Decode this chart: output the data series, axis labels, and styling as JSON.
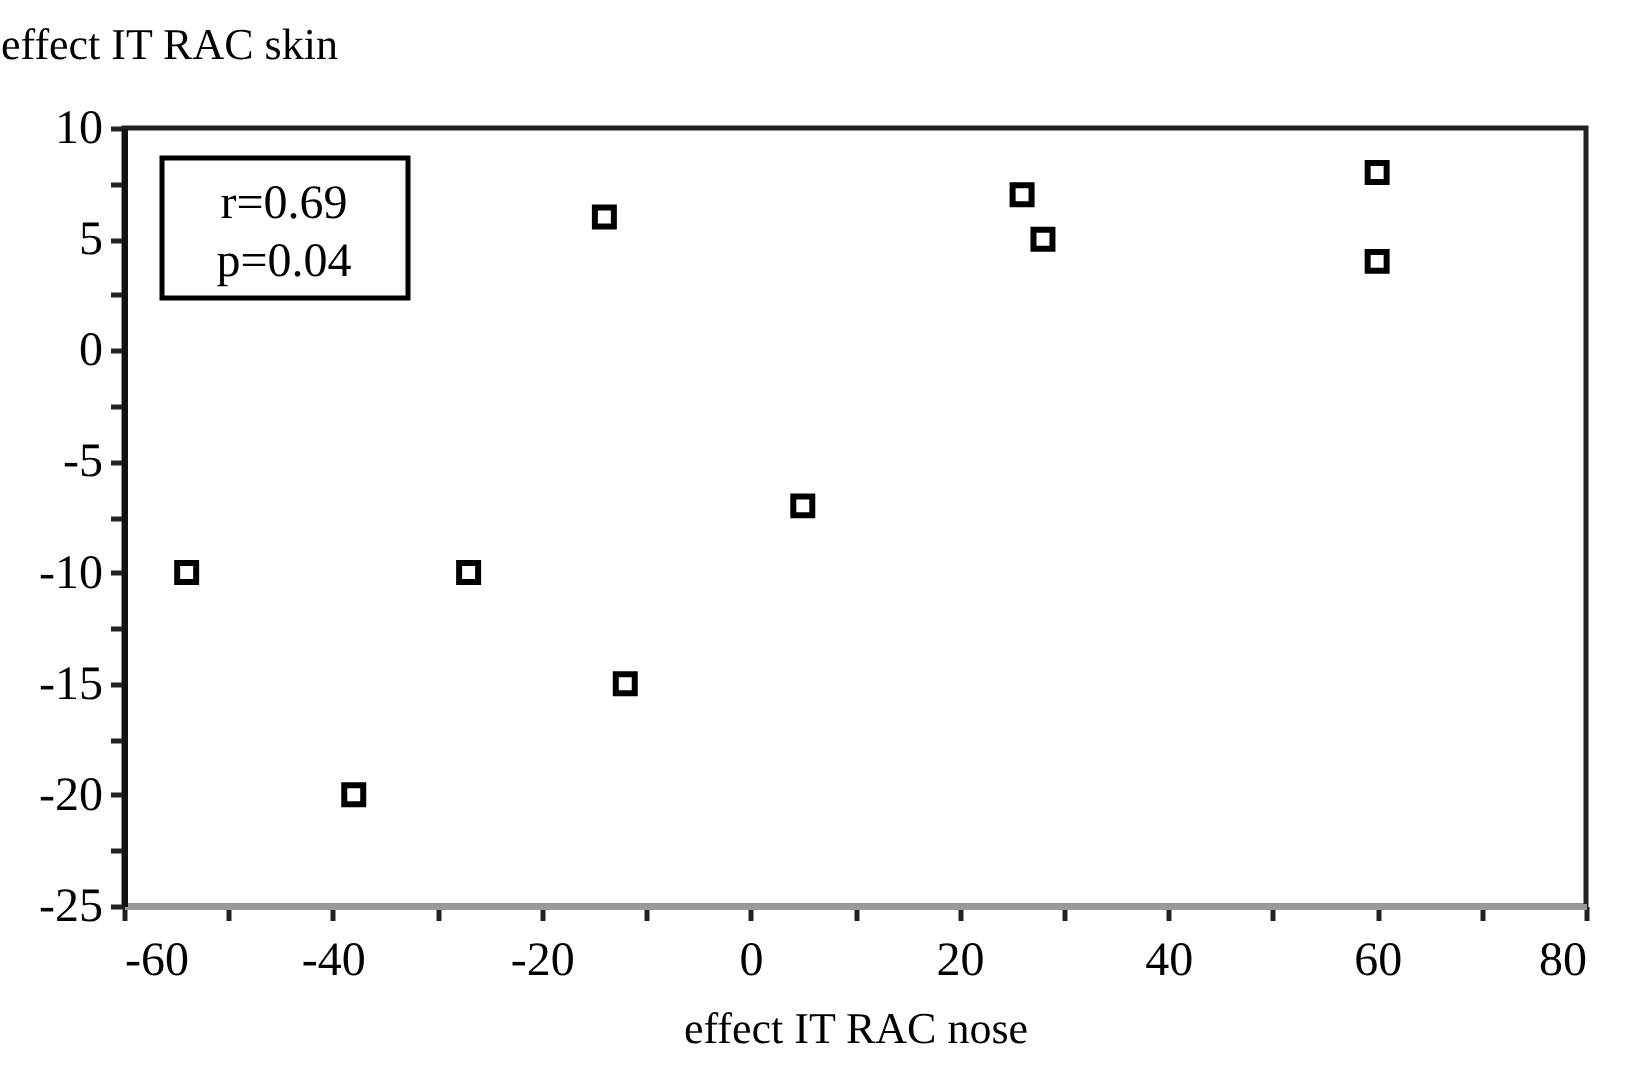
{
  "chart_data": {
    "type": "scatter",
    "xlabel": "effect IT RAC nose",
    "ylabel": "effect IT RAC skin",
    "annotations": [
      "r=0.69",
      "p=0.04"
    ],
    "x": [
      -54,
      -38,
      -27,
      -14,
      -12,
      5,
      26,
      28,
      60,
      60
    ],
    "series": [
      {
        "color": "#000000",
        "values": [
          -10,
          -20,
          -10,
          6,
          -15,
          -7,
          7,
          5,
          8,
          4
        ]
      }
    ],
    "xlim": [
      -60,
      80
    ],
    "ylim": [
      -25,
      10
    ],
    "xticks": [
      -60,
      {
        "value": -50,
        "label": null
      },
      -40,
      {
        "value": -30,
        "label": null
      },
      -20,
      {
        "value": -10,
        "label": null
      },
      0,
      {
        "value": 10,
        "label": null
      },
      20,
      {
        "value": 30,
        "label": null
      },
      40,
      {
        "value": 50,
        "label": null
      },
      60,
      {
        "value": 70,
        "label": null
      },
      80
    ],
    "yticks": [
      -25,
      {
        "value": -22.5,
        "label": null
      },
      -20,
      {
        "value": -17.5,
        "label": null
      },
      -15,
      {
        "value": -12.5,
        "label": null
      },
      -10,
      {
        "value": -7.5,
        "label": null
      },
      -5,
      {
        "value": -2.5,
        "label": null
      },
      0,
      {
        "value": 2.5,
        "label": null
      },
      5,
      {
        "value": 7.5,
        "label": null
      },
      10
    ],
    "grid": false,
    "marker": "square"
  }
}
